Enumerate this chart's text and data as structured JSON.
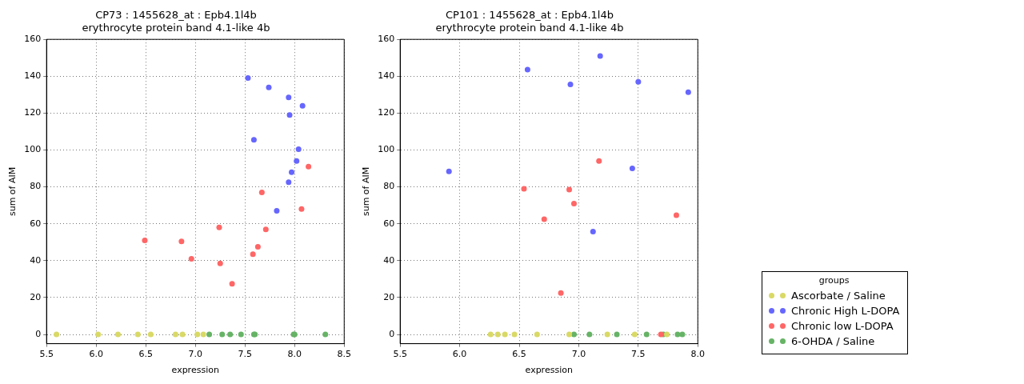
{
  "chart_data": [
    {
      "type": "scatter",
      "title": "CP73 : 1455628_at : Epb4.1l4b",
      "subtitle": "erythrocyte protein band 4.1-like 4b",
      "xlabel": "expression",
      "ylabel": "sum of AIM",
      "xlim": [
        5.5,
        8.5
      ],
      "xticks": [
        5.5,
        {
          "value": 6,
          "label": "6.0"
        },
        6.5,
        {
          "value": 7,
          "label": "7.0"
        },
        7.5,
        {
          "value": 8,
          "label": "8.0"
        },
        8.5
      ],
      "ylim": [
        -5,
        160
      ],
      "yticks": [
        0,
        20,
        40,
        60,
        80,
        100,
        120,
        140,
        160
      ],
      "grid": true,
      "legend": false,
      "marker": "circle",
      "series": [
        {
          "color": "#d9d966",
          "x": [
            5.6,
            6.02,
            6.22,
            6.42,
            6.55,
            6.8,
            6.87,
            7.02,
            7.08
          ],
          "values": [
            0,
            0,
            0,
            0,
            0,
            0,
            0,
            0,
            0
          ]
        },
        {
          "color": "#6666ff",
          "x": [
            7.53,
            7.74,
            7.94,
            8.08,
            7.95,
            7.59,
            8.04,
            8.02,
            7.97,
            7.94,
            7.82
          ],
          "values": [
            139,
            134,
            128.5,
            124,
            119,
            105.5,
            100.5,
            94,
            88,
            82.5,
            67
          ]
        },
        {
          "color": "#ff6666",
          "x": [
            8.14,
            7.67,
            8.07,
            7.24,
            7.71,
            6.49,
            6.86,
            7.63,
            7.58,
            6.96,
            7.25,
            7.37
          ],
          "values": [
            91,
            77,
            68,
            58,
            57,
            51,
            50.5,
            47.5,
            43.5,
            41,
            38.5,
            27.5
          ]
        },
        {
          "color": "#66b366",
          "x": [
            7.14,
            7.27,
            7.35,
            7.46,
            7.59,
            7.6,
            7.99,
            8.0,
            8.31
          ],
          "values": [
            0,
            0,
            0,
            0,
            0,
            0,
            0,
            0,
            0
          ]
        }
      ]
    },
    {
      "type": "scatter",
      "title": "CP101 : 1455628_at : Epb4.1l4b",
      "subtitle": "erythrocyte protein band 4.1-like 4b",
      "xlabel": "expression",
      "ylabel": "sum of AIM",
      "xlim": [
        5.5,
        8.0
      ],
      "xticks": [
        5.5,
        {
          "value": 6,
          "label": "6.0"
        },
        6.5,
        {
          "value": 7,
          "label": "7.0"
        },
        7.5,
        {
          "value": 8,
          "label": "8.0"
        }
      ],
      "ylim": [
        -5,
        160
      ],
      "yticks": [
        0,
        20,
        40,
        60,
        80,
        100,
        120,
        140,
        160
      ],
      "grid": true,
      "legend": "right",
      "legend_title": "groups",
      "marker": "circle",
      "series": [
        {
          "name": "Ascorbate / Saline",
          "color": "#d9d966",
          "x": [
            6.26,
            6.32,
            6.38,
            6.46,
            6.65,
            6.92,
            7.24,
            7.47,
            7.74
          ],
          "values": [
            0,
            0,
            0,
            0,
            0,
            0,
            0,
            0,
            0
          ]
        },
        {
          "name": "Chronic High L-DOPA",
          "color": "#6666ff",
          "x": [
            6.57,
            7.18,
            6.93,
            7.5,
            7.92,
            5.91,
            7.45,
            7.12
          ],
          "values": [
            143.6,
            151,
            135.6,
            137,
            131.4,
            88.4,
            90,
            55.8
          ]
        },
        {
          "name": "Chronic low L-DOPA",
          "color": "#ff6666",
          "x": [
            7.17,
            6.54,
            6.92,
            6.96,
            7.82,
            6.71,
            6.85,
            7.69
          ],
          "values": [
            94,
            79,
            78.5,
            71,
            64.7,
            62.5,
            22.5,
            0
          ]
        },
        {
          "name": "6-OHDA / Saline",
          "color": "#66b366",
          "x": [
            6.96,
            7.09,
            7.32,
            7.57,
            7.71,
            7.83,
            7.87
          ],
          "values": [
            0,
            0,
            0,
            0,
            0,
            0,
            0
          ]
        }
      ]
    }
  ]
}
